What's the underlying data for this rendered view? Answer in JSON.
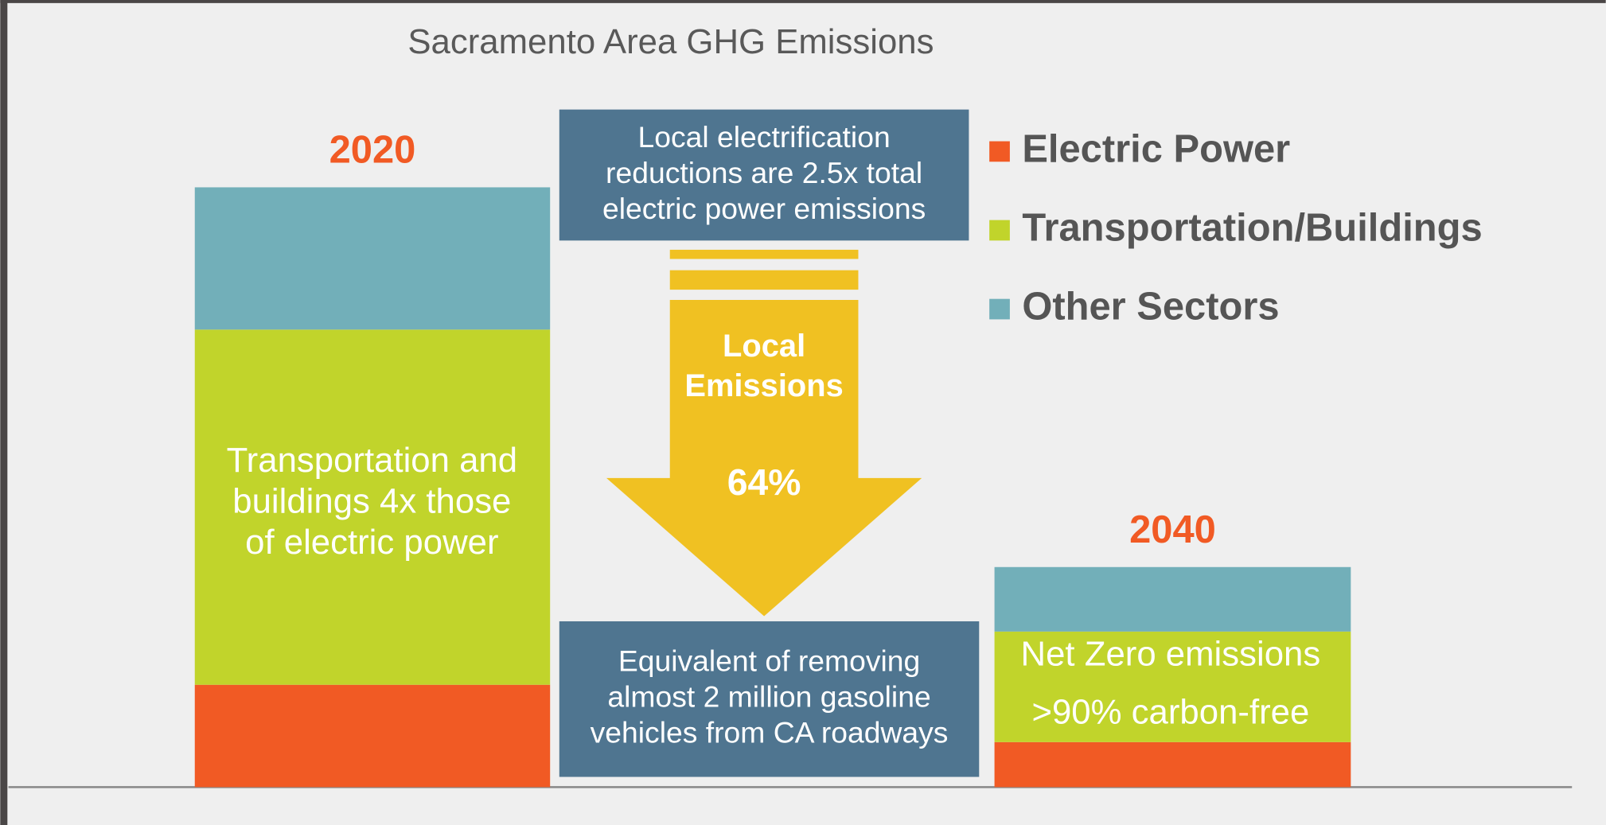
{
  "chart_data": {
    "type": "bar",
    "stacked": true,
    "title": "Sacramento Area GHG Emissions",
    "categories": [
      "2020",
      "2040"
    ],
    "series": [
      {
        "name": "Electric Power",
        "color": "#f15a24",
        "values": [
          100,
          44
        ]
      },
      {
        "name": "Transportation/Buildings",
        "color": "#c1d42b",
        "values": [
          347,
          108
        ]
      },
      {
        "name": "Other Sectors",
        "color": "#72afb9",
        "values": [
          139,
          63
        ]
      }
    ],
    "ylim": [
      0,
      600
    ],
    "legend": "right",
    "annotations": {
      "bar_2020": [
        "Transportation and",
        "buildings 4x those",
        "of electric power"
      ],
      "bar_2040": [
        "Net Zero emissions",
        ">90% carbon-free"
      ],
      "top_box": [
        "Local electrification",
        "reductions are 2.5x total",
        "electric power emissions"
      ],
      "arrow": [
        "Local",
        "Emissions"
      ],
      "arrow_value": "64%",
      "bottom_box": [
        "Equivalent of removing",
        "almost 2 million gasoline",
        "vehicles from CA roadways"
      ]
    }
  }
}
